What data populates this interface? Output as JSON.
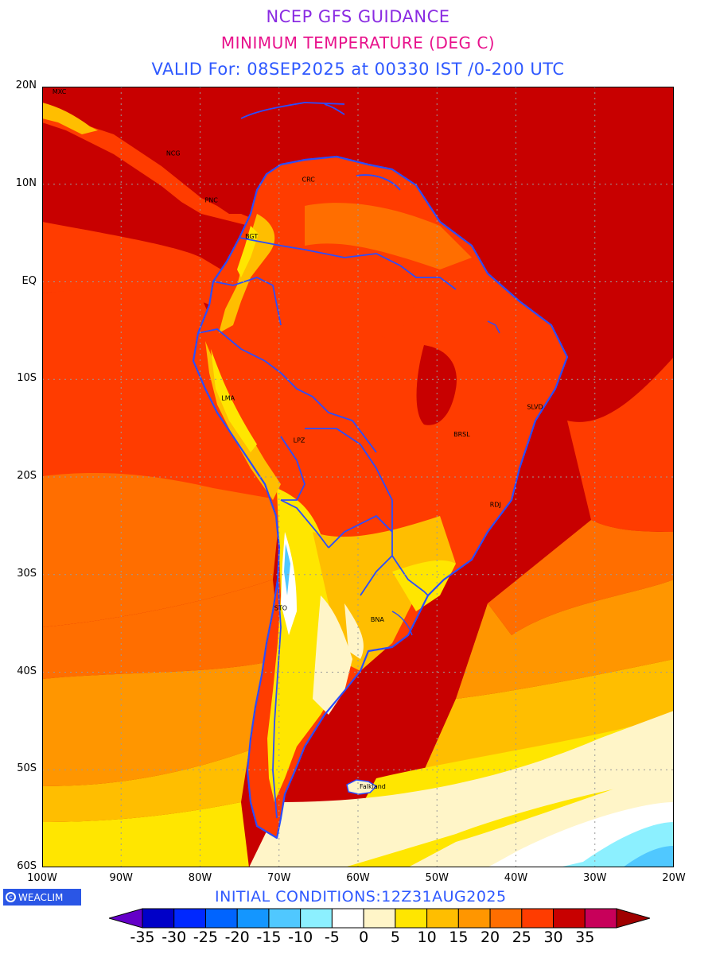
{
  "header": {
    "line1": "NCEP GFS GUIDANCE",
    "line1_color": "#8a2be2",
    "line2": "MINIMUM TEMPERATURE (DEG C)",
    "line2_color": "#e8128c",
    "line3": "VALID For: 08SEP2025 at 00330 IST /0-200 UTC",
    "line3_color": "#2f59ff"
  },
  "axes": {
    "y_labels": [
      "20N",
      "10N",
      "EQ",
      "10S",
      "20S",
      "30S",
      "40S",
      "50S",
      "60S"
    ],
    "x_labels": [
      "100W",
      "90W",
      "80W",
      "70W",
      "60W",
      "50W",
      "40W",
      "30W",
      "20W"
    ],
    "lat_range": [
      -60,
      20
    ],
    "lon_range": [
      -100,
      -20
    ],
    "grid": "dotted"
  },
  "cities": [
    {
      "name": "MXC",
      "lon": -98.7,
      "lat": 19.5
    },
    {
      "name": "NCG",
      "lon": -84.3,
      "lat": 13.2
    },
    {
      "name": "PNC",
      "lon": -79.4,
      "lat": 8.4
    },
    {
      "name": "CRC",
      "lon": -67.1,
      "lat": 10.5
    },
    {
      "name": "BGT",
      "lon": -74.3,
      "lat": 4.7
    },
    {
      "name": "LMA",
      "lon": -77.3,
      "lat": -11.9
    },
    {
      "name": "LPZ",
      "lon": -68.2,
      "lat": -16.2
    },
    {
      "name": "SLVD",
      "lon": -38.6,
      "lat": -12.8
    },
    {
      "name": "BRSL",
      "lon": -47.9,
      "lat": -15.6
    },
    {
      "name": "RDJ",
      "lon": -43.3,
      "lat": -22.8
    },
    {
      "name": "STO",
      "lon": -70.6,
      "lat": -33.4
    },
    {
      "name": "BNA",
      "lon": -58.4,
      "lat": -34.6
    },
    {
      "name": "Falkland",
      "lon": -59.8,
      "lat": -51.7
    }
  ],
  "footer": {
    "initial_conditions": "INITIAL CONDITIONS:12Z31AUG2025",
    "logo_text": "WEACLIM"
  },
  "colorbar": {
    "labels": [
      "-35",
      "-30",
      "-25",
      "-20",
      "-15",
      "-10",
      "-5",
      "0",
      "5",
      "10",
      "15",
      "20",
      "25",
      "30",
      "35"
    ],
    "colors": [
      "#0000c8",
      "#0028ff",
      "#0064ff",
      "#1496ff",
      "#50c8ff",
      "#8cf0ff",
      "#ffffff",
      "#fff5c8",
      "#ffe600",
      "#ffbe00",
      "#ff9600",
      "#ff6e00",
      "#ff3c00",
      "#c80000",
      "#c8005a"
    ],
    "low_arrow_color": "#6400c8",
    "high_arrow_color": "#a00000"
  },
  "palette": {
    "deep_red": "#c80000",
    "red_orange": "#ff3c00",
    "orange": "#ff6e00",
    "light_orange": "#ff9600",
    "amber": "#ffbe00",
    "yellow": "#ffe600",
    "cream": "#fff5c8",
    "white": "#ffffff",
    "cyan": "#8cf0ff",
    "sky": "#50c8ff",
    "boundary": "#2a4dff"
  }
}
